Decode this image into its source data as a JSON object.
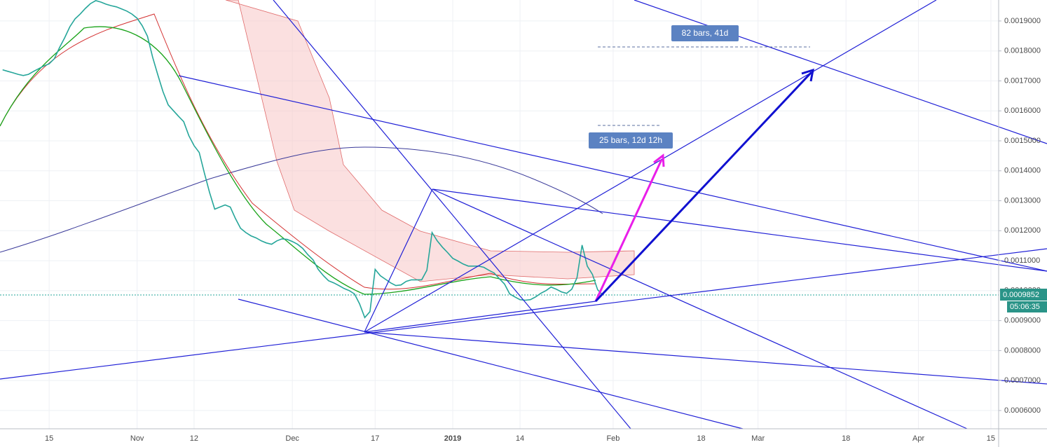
{
  "chart_data": {
    "type": "line",
    "color": "#26a69a",
    "categories": [
      null,
      null,
      null,
      null,
      null,
      null,
      null,
      null,
      null,
      "15",
      null,
      null,
      null,
      null,
      null,
      null,
      null,
      null,
      null,
      null,
      null,
      null,
      null,
      null,
      null,
      null,
      "Nov",
      null,
      null,
      null,
      null,
      null,
      null,
      null,
      null,
      null,
      null,
      "12",
      null,
      null,
      null,
      null,
      null,
      null,
      null,
      null,
      null,
      null,
      null,
      null,
      null,
      null,
      null,
      null,
      null,
      null,
      "Dec",
      null,
      null,
      null,
      null,
      null,
      null,
      null,
      null,
      null,
      null,
      null,
      null,
      null,
      null,
      null,
      "17",
      null,
      null,
      null,
      null,
      null,
      null,
      null,
      null,
      null,
      null,
      null,
      null,
      null,
      null,
      "2019",
      null,
      null,
      null,
      null,
      null,
      null,
      null,
      null,
      null,
      null,
      null,
      null,
      "14",
      null,
      null,
      null,
      null,
      null,
      null,
      null,
      null,
      null,
      null,
      null,
      null,
      null,
      null,
      null,
      null,
      null,
      "Feb",
      null,
      null,
      null,
      null,
      null,
      null,
      null,
      null,
      null,
      null,
      null,
      null,
      null,
      null,
      null,
      null,
      "18",
      null,
      null,
      null,
      null,
      null,
      null,
      null,
      null,
      null,
      null,
      "Mar",
      null,
      null,
      null,
      null,
      null,
      null,
      null,
      null,
      null,
      null,
      null,
      null,
      null,
      null,
      null,
      null,
      "18",
      null,
      null,
      null,
      null,
      null,
      null,
      null,
      null,
      null,
      null,
      null,
      null,
      null,
      "Apr",
      null,
      null,
      null,
      null,
      null,
      null,
      null,
      null,
      null,
      null,
      null,
      null,
      null,
      "15",
      null
    ],
    "values": [
      0.001737,
      0.001732,
      0.001727,
      0.001722,
      0.001718,
      0.001722,
      0.001732,
      0.001741,
      0.00175,
      0.001757,
      0.001774,
      0.001811,
      0.001844,
      0.001881,
      0.001907,
      0.001923,
      0.001942,
      0.001958,
      0.001968,
      0.001963,
      0.001956,
      0.001951,
      0.001947,
      0.00194,
      0.001933,
      0.001923,
      0.001909,
      0.001884,
      0.001849,
      0.001779,
      0.00172,
      0.001664,
      0.00162,
      0.001601,
      0.001582,
      0.001564,
      0.001517,
      0.001484,
      0.001461,
      0.001393,
      0.001328,
      0.001272,
      0.001279,
      0.001286,
      0.001279,
      0.001241,
      0.001208,
      0.001194,
      0.001183,
      0.001176,
      0.001166,
      0.001159,
      0.001155,
      0.001166,
      0.001173,
      0.001171,
      0.001164,
      0.001155,
      0.001141,
      0.00112,
      0.001103,
      0.001071,
      0.00105,
      0.001033,
      0.001026,
      0.001017,
      0.001007,
      0.001,
      0.000989,
      0.000956,
      0.00091,
      0.00093,
      0.001071,
      0.00105,
      0.001038,
      0.001026,
      0.001017,
      0.001019,
      0.001031,
      0.001036,
      0.001036,
      0.001036,
      0.001068,
      0.001194,
      0.001166,
      0.001145,
      0.001127,
      0.001108,
      0.001099,
      0.001089,
      0.001082,
      0.001082,
      0.001082,
      0.001078,
      0.001068,
      0.001059,
      0.00104,
      0.001022,
      0.000989,
      0.000979,
      0.00097,
      0.000968,
      0.00097,
      0.000979,
      0.000991,
      0.001,
      0.001012,
      0.001005,
      0.000996,
      0.000991,
      0.001005,
      0.001043,
      0.001152,
      0.001082,
      0.001054,
      0.001003,
      0.0009852,
      null,
      null,
      null,
      null,
      null,
      null,
      null,
      null,
      null,
      null,
      null,
      null,
      null,
      null,
      null,
      null,
      null,
      null,
      null,
      null,
      null,
      null,
      null,
      null,
      null,
      null,
      null,
      null,
      null,
      null,
      null,
      null,
      null,
      null,
      null,
      null,
      null,
      null,
      null,
      null,
      null,
      null,
      null,
      null,
      null,
      null,
      null,
      null,
      null,
      null,
      null,
      null,
      null,
      null,
      null,
      null,
      null,
      null,
      null,
      null,
      null,
      null,
      null,
      null,
      null,
      null,
      null,
      null,
      null,
      null,
      null,
      null,
      null,
      null,
      null,
      null
    ],
    "ylim": [
      0.000539,
      0.00197
    ],
    "yticks": [
      {
        "value": 0.0006,
        "label": "0.0006000"
      },
      {
        "value": 0.0007,
        "label": "0.0007000"
      },
      {
        "value": 0.0008,
        "label": "0.0008000"
      },
      {
        "value": 0.0009,
        "label": "0.0009000"
      },
      {
        "value": 0.001,
        "label": "0.0010000"
      },
      {
        "value": 0.0011,
        "label": "0.0011000"
      },
      {
        "value": 0.0012,
        "label": "0.0012000"
      },
      {
        "value": 0.0013,
        "label": "0.0013000"
      },
      {
        "value": 0.0014,
        "label": "0.0014000"
      },
      {
        "value": 0.0015,
        "label": "0.0015000"
      },
      {
        "value": 0.0016,
        "label": "0.0016000"
      },
      {
        "value": 0.0017,
        "label": "0.0017000"
      },
      {
        "value": 0.0018,
        "label": "0.0018000"
      },
      {
        "value": 0.0019,
        "label": "0.0019000"
      }
    ],
    "grid": true,
    "last_price": 0.0009852,
    "countdown": "05:06:35",
    "annotations": [
      "82 bars, 41d",
      "25 bars, 12d 12h"
    ]
  }
}
